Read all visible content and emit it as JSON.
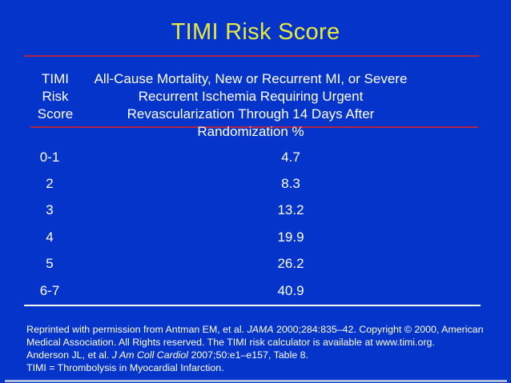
{
  "title": "TIMI Risk Score",
  "colors": {
    "background": "#0534cb",
    "title": "#e8e93f",
    "divider_red": "#b02545",
    "divider_white": "#f5f5ef",
    "text": "#ffffff",
    "bottom_edge": "#a9b8dc"
  },
  "header": {
    "score_lines": [
      "TIMI",
      "Risk",
      "Score"
    ],
    "outcome_lines": [
      "All-Cause Mortality, New or Recurrent MI, or Severe",
      "Recurrent Ischemia Requiring Urgent",
      "Revascularization Through 14 Days After",
      "Randomization %"
    ]
  },
  "table": {
    "columns": [
      "TIMI Risk Score",
      "All-Cause Mortality, New or Recurrent MI, or Severe Recurrent Ischemia Requiring Urgent Revascularization Through 14 Days After Randomization %"
    ],
    "rows": [
      {
        "score": "0-1",
        "value": "4.7"
      },
      {
        "score": "2",
        "value": "8.3"
      },
      {
        "score": "3",
        "value": "13.2"
      },
      {
        "score": "4",
        "value": "19.9"
      },
      {
        "score": "5",
        "value": "26.2"
      },
      {
        "score": "6-7",
        "value": "40.9"
      }
    ]
  },
  "footer": {
    "l1a": "Reprinted with permission from Antman EM, et al. ",
    "l1b": "JAMA",
    "l1c": " 2000;284:835–42. Copyright © 2000, American",
    "l2": "Medical Association. All Rights reserved. The TIMI risk calculator is available at www.timi.org.",
    "l3a": "Anderson JL, et al. ",
    "l3b": "J Am Coll Cardiol",
    "l3c": " 2007;50:e1–e157, Table 8.",
    "l4": "TIMI = Thrombolysis in Myocardial Infarction."
  }
}
